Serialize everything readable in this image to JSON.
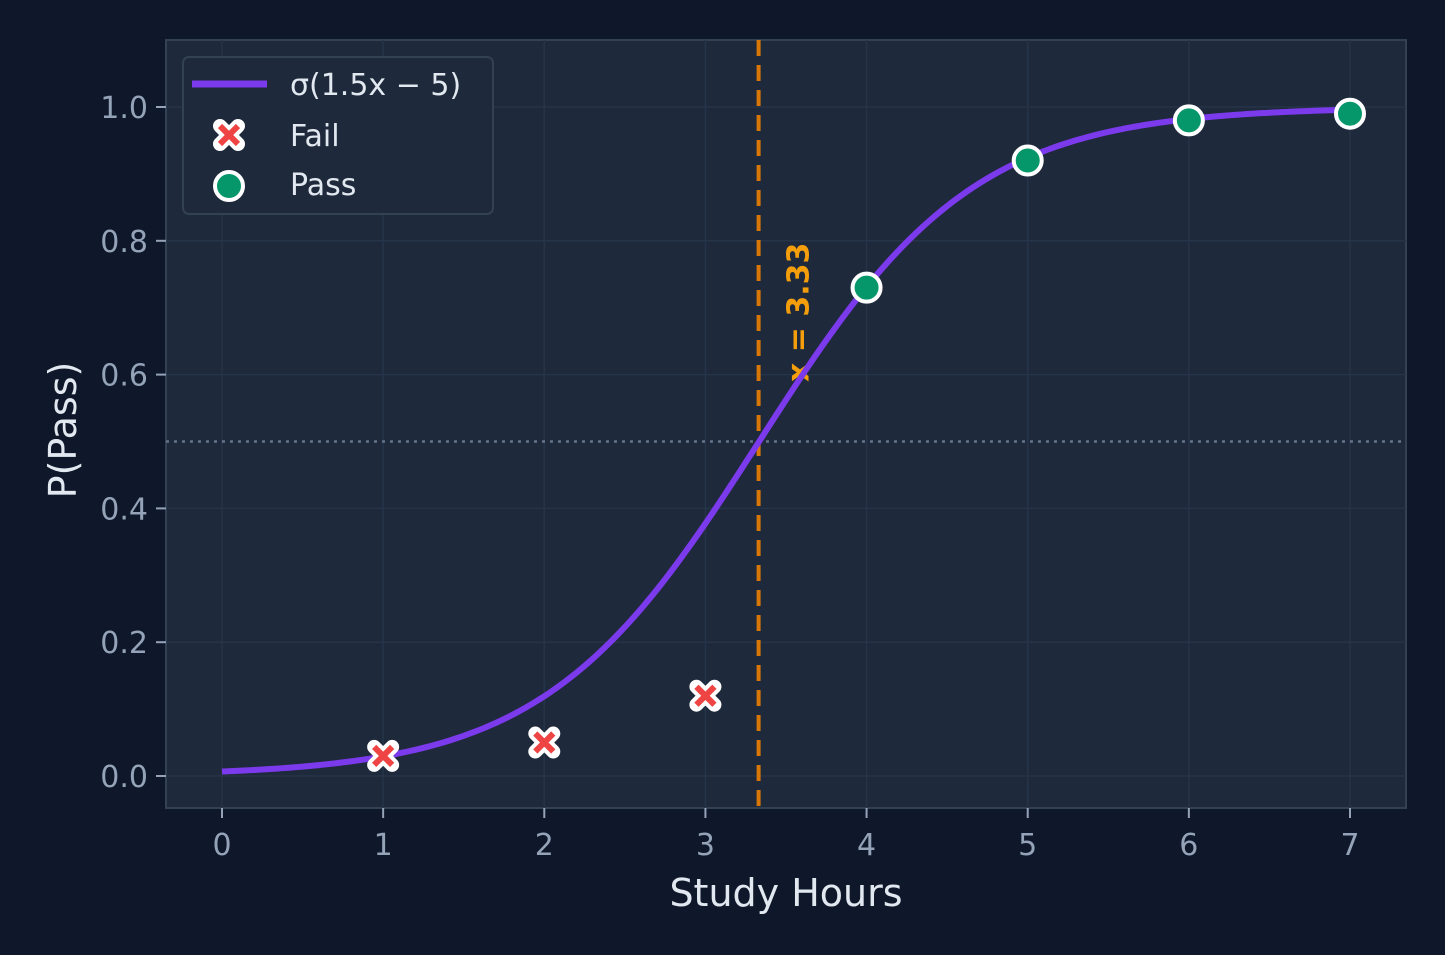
{
  "chart_data": {
    "type": "scatter",
    "title": "",
    "xlabel": "Study Hours",
    "ylabel": "P(Pass)",
    "xlim": [
      -0.35,
      7.35
    ],
    "ylim": [
      -0.05,
      1.1
    ],
    "x_ticks": [
      "0",
      "1",
      "2",
      "3",
      "4",
      "5",
      "6",
      "7"
    ],
    "y_ticks": [
      "0.0",
      "0.2",
      "0.4",
      "0.6",
      "0.8",
      "1.0"
    ],
    "grid": true,
    "legend_position": "upper left",
    "series": [
      {
        "name": "σ(1.5x − 5)",
        "kind": "line",
        "color": "#7c3aed",
        "function": "1/(1+exp(-(1.5x-5)))",
        "x_range": [
          0,
          7
        ]
      },
      {
        "name": "Fail",
        "kind": "scatter",
        "marker": "x",
        "color": "#ef4444",
        "x": [
          1,
          2,
          3
        ],
        "y": [
          0.03,
          0.05,
          0.12
        ]
      },
      {
        "name": "Pass",
        "kind": "scatter",
        "marker": "o",
        "color": "#059669",
        "x": [
          4,
          5,
          6,
          7
        ],
        "y": [
          0.73,
          0.92,
          0.98,
          0.99
        ]
      }
    ],
    "annotations": [
      {
        "type": "vline",
        "x": 3.33,
        "style": "dashed",
        "color": "#d97706",
        "label": "x = 3.33"
      },
      {
        "type": "hline",
        "y": 0.5,
        "style": "dotted",
        "color": "#64748b"
      }
    ]
  },
  "legend": {
    "line_label": "σ(1.5x − 5)",
    "fail_label": "Fail",
    "pass_label": "Pass"
  },
  "axes": {
    "xlabel": "Study Hours",
    "ylabel": "P(Pass)"
  },
  "annotation_label": "x = 3.33"
}
